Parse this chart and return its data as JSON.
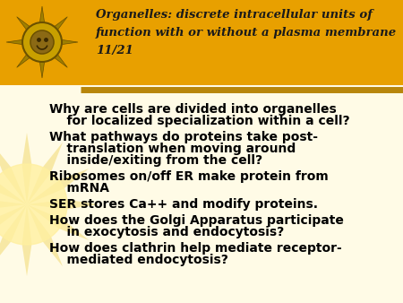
{
  "bg_color": "#FFFBE6",
  "header_bg": "#E8A000",
  "body_text_color": "#000000",
  "separator_color": "#B8860B",
  "header_title_line1": "Organelles: discrete intracellular units of",
  "header_title_line2": "function with or without a plasma membrane",
  "header_title_line3": "11/21",
  "bullet_items": [
    "Why are cells are divided into organelles\n    for localized specialization within a cell?",
    "What pathways do proteins take post-\n    translation when moving around\n    inside/exiting from the cell?",
    "Ribosomes on/off ER make protein from\n    mRNA",
    "SER stores Ca++ and modify proteins.",
    "How does the Golgi Apparatus participate\n    in exocytosis and endocytosis?",
    "How does clathrin help mediate receptor-\n    mediated endocytosis?"
  ],
  "title_fontsize": 9.5,
  "body_fontsize": 10.0,
  "figure_width": 4.5,
  "figure_height": 3.38,
  "dpi": 100
}
